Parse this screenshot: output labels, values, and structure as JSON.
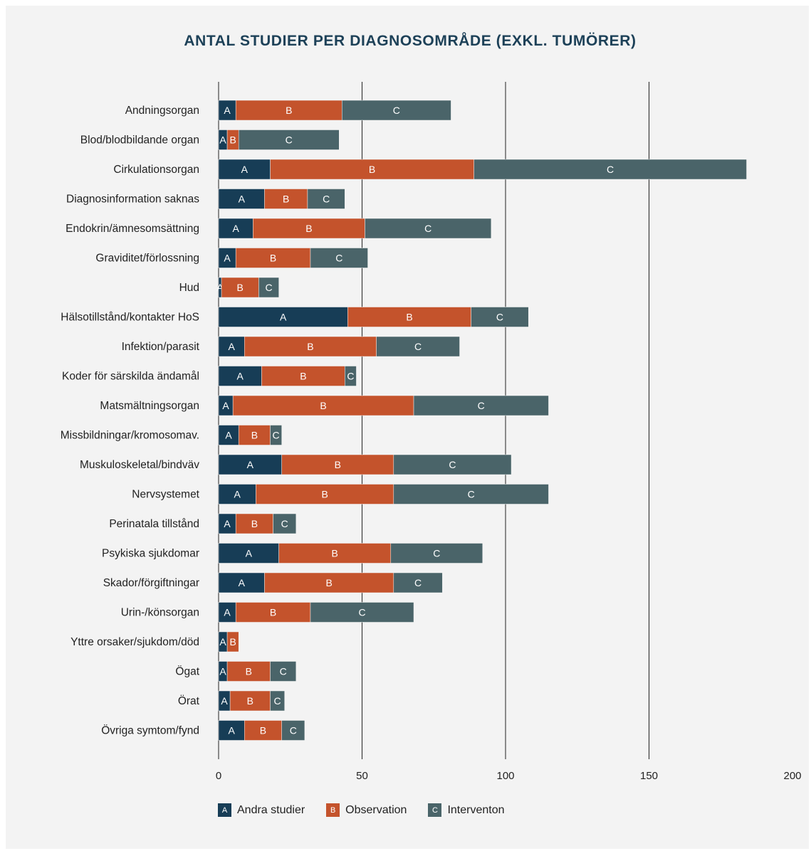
{
  "title": "ANTAL STUDIER PER DIAGNOSOMRÅDE (EXKL. TUMÖRER)",
  "chart_data": {
    "type": "bar",
    "orientation": "horizontal",
    "stacked": true,
    "categories": [
      "Andningsorgan",
      "Blod/blodbildande organ",
      "Cirkulationsorgan",
      "Diagnosinformation saknas",
      "Endokrin/ämnesomsättning",
      "Graviditet/förlossning",
      "Hud",
      "Hälsotillstånd/kontakter HoS",
      "Infektion/parasit",
      "Koder för särskilda ändamål",
      "Matsmältningsorgan",
      "Missbildningar/kromosomav.",
      "Muskuloskeletal/bindväv",
      "Nervsystemet",
      "Perinatala tillstånd",
      "Psykiska sjukdomar",
      "Skador/förgiftningar",
      "Urin-/könsorgan",
      "Yttre orsaker/sjukdom/död",
      "Ögat",
      "Örat",
      "Övriga symtom/fynd"
    ],
    "series": [
      {
        "name": "Andra studier",
        "letter": "A",
        "color": "#173d56",
        "values": [
          6,
          3,
          18,
          16,
          12,
          6,
          1,
          45,
          9,
          15,
          5,
          7,
          22,
          13,
          6,
          21,
          16,
          6,
          3,
          3,
          4,
          9
        ]
      },
      {
        "name": "Observation",
        "letter": "B",
        "color": "#c4532c",
        "values": [
          37,
          4,
          71,
          15,
          39,
          26,
          13,
          43,
          46,
          29,
          63,
          11,
          39,
          48,
          13,
          39,
          45,
          26,
          4,
          15,
          14,
          13
        ]
      },
      {
        "name": "Interventon",
        "letter": "C",
        "color": "#4a6469",
        "values": [
          38,
          35,
          95,
          13,
          44,
          20,
          7,
          20,
          29,
          4,
          47,
          4,
          41,
          54,
          8,
          32,
          17,
          36,
          0,
          9,
          5,
          8
        ]
      }
    ],
    "xticks": [
      "0",
      "50",
      "100",
      "150",
      "200"
    ],
    "xlim": [
      0,
      200
    ],
    "grid": "vertical",
    "legend_position": "bottom"
  }
}
